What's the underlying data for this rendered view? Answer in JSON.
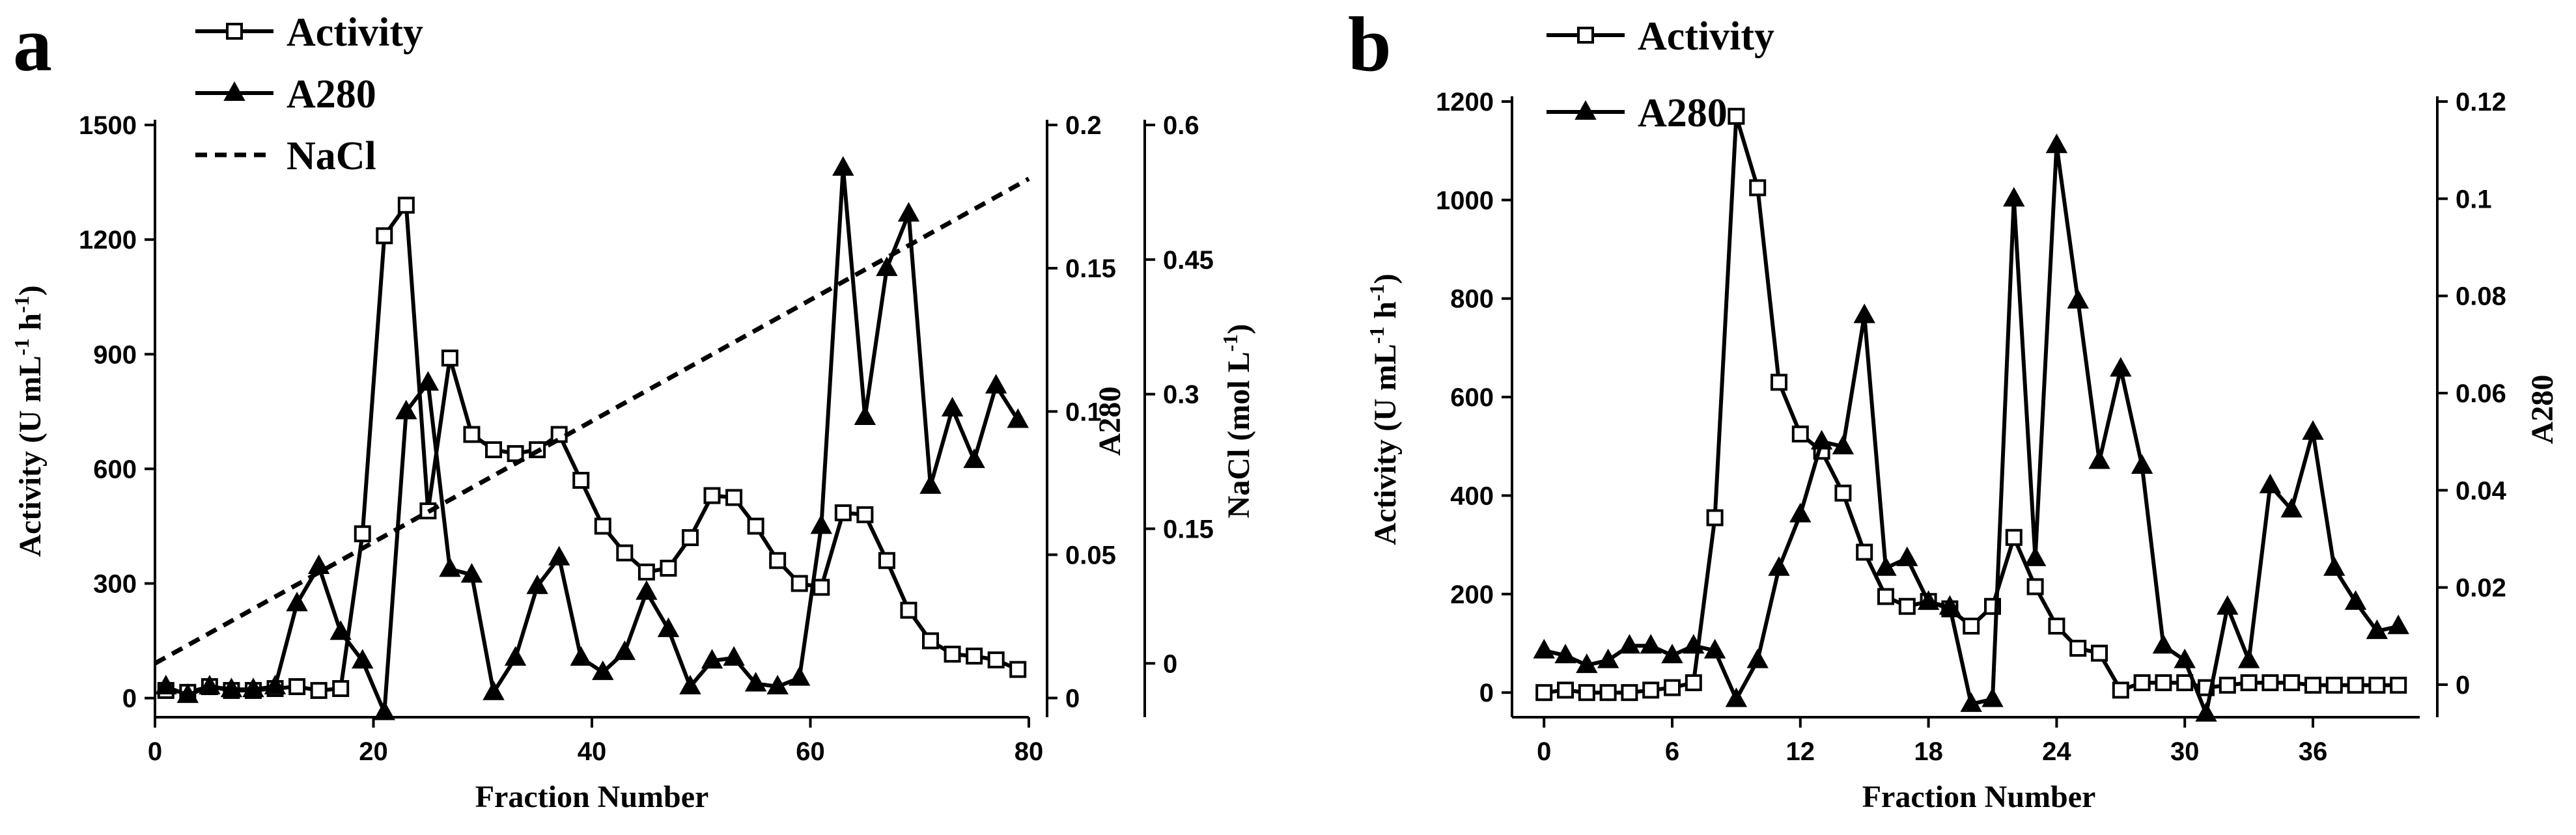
{
  "chart_data": [
    {
      "panel": "a",
      "type": "line",
      "xlabel": "Fraction Number",
      "xlim": [
        0,
        80
      ],
      "xticks": [
        0,
        20,
        40,
        60,
        80
      ],
      "axes": {
        "left": {
          "label": "Activity (U mL⁻¹ h⁻¹)",
          "lim": [
            -50,
            1500
          ],
          "ticks": [
            0,
            300,
            600,
            900,
            1200,
            1500
          ]
        },
        "right1": {
          "label": "A280",
          "lim": [
            -0.0067,
            0.2
          ],
          "ticks": [
            0,
            0.05,
            0.1,
            0.15,
            0.2
          ],
          "tick_labels": [
            "0",
            "0.05",
            "0.1",
            "0.15",
            "0.2"
          ]
        },
        "right2": {
          "label": "NaCl (mol L⁻¹)",
          "lim": [
            -0.06,
            0.6
          ],
          "ticks": [
            0,
            0.15,
            0.3,
            0.45,
            0.6
          ],
          "tick_labels": [
            "0",
            "0.15",
            "0.3",
            "0.45",
            "0.6"
          ]
        }
      },
      "series": [
        {
          "name": "Activity",
          "axis": "left",
          "marker": "square-open",
          "style": "solid",
          "x": [
            1,
            3,
            5,
            7,
            9,
            11,
            13,
            15,
            17,
            19,
            21,
            23,
            25,
            27,
            29,
            31,
            33,
            35,
            37,
            39,
            41,
            43,
            45,
            47,
            49,
            51,
            53,
            55,
            57,
            59,
            61,
            63,
            65,
            67,
            69,
            71,
            73,
            75,
            77,
            79
          ],
          "y": [
            20,
            15,
            30,
            20,
            20,
            25,
            30,
            20,
            25,
            430,
            1210,
            1290,
            490,
            890,
            690,
            650,
            640,
            650,
            690,
            570,
            450,
            380,
            330,
            340,
            420,
            530,
            525,
            450,
            360,
            300,
            290,
            485,
            480,
            360,
            230,
            150,
            115,
            110,
            100,
            75
          ]
        },
        {
          "name": "A280",
          "axis": "right1",
          "marker": "triangle-filled",
          "style": "solid",
          "x": [
            1,
            3,
            5,
            7,
            9,
            11,
            13,
            15,
            17,
            19,
            21,
            23,
            25,
            27,
            29,
            31,
            33,
            35,
            37,
            39,
            41,
            43,
            45,
            47,
            49,
            51,
            53,
            55,
            57,
            59,
            61,
            63,
            65,
            67,
            69,
            71,
            73,
            75,
            77,
            79
          ],
          "y": [
            0.004,
            0.001,
            0.004,
            0.003,
            0.003,
            0.004,
            0.033,
            0.046,
            0.023,
            0.013,
            -0.005,
            0.1,
            0.11,
            0.045,
            0.043,
            0.002,
            0.014,
            0.039,
            0.049,
            0.014,
            0.009,
            0.016,
            0.037,
            0.024,
            0.004,
            0.013,
            0.014,
            0.005,
            0.004,
            0.007,
            0.06,
            0.185,
            0.098,
            0.15,
            0.169,
            0.074,
            0.101,
            0.083,
            0.109,
            0.097
          ]
        },
        {
          "name": "NaCl",
          "axis": "right2",
          "style": "dashed",
          "x": [
            0,
            80
          ],
          "y": [
            0,
            0.54
          ]
        }
      ],
      "legend": {
        "position": "top-left",
        "entries": [
          "Activity",
          "A280",
          "NaCl"
        ]
      }
    },
    {
      "panel": "b",
      "type": "line",
      "xlabel": "Fraction Number",
      "xlim": [
        -1.5,
        41
      ],
      "xticks": [
        0,
        6,
        12,
        18,
        24,
        30,
        36
      ],
      "axes": {
        "left": {
          "label": "Activity (U mL⁻¹ h⁻¹)",
          "lim": [
            -50,
            1200
          ],
          "ticks": [
            0,
            200,
            400,
            600,
            800,
            1000,
            1200
          ]
        },
        "right1": {
          "label": "A280",
          "lim": [
            -0.0067,
            0.12
          ],
          "ticks": [
            0,
            0.02,
            0.04,
            0.06,
            0.08,
            0.1,
            0.12
          ],
          "tick_labels": [
            "0",
            "0.02",
            "0.04",
            "0.06",
            "0.08",
            "0.1",
            "0.12"
          ]
        }
      },
      "series": [
        {
          "name": "Activity",
          "axis": "left",
          "marker": "square-open",
          "style": "solid",
          "x": [
            0,
            1,
            2,
            3,
            4,
            5,
            6,
            7,
            8,
            9,
            10,
            11,
            12,
            13,
            14,
            15,
            16,
            17,
            18,
            19,
            20,
            21,
            22,
            23,
            24,
            25,
            26,
            27,
            28,
            29,
            30,
            31,
            32,
            33,
            34,
            35,
            36,
            37,
            38,
            39,
            40
          ],
          "y": [
            0,
            5,
            0,
            0,
            0,
            5,
            10,
            20,
            355,
            1170,
            1025,
            630,
            525,
            490,
            405,
            285,
            195,
            175,
            185,
            170,
            135,
            175,
            315,
            215,
            135,
            90,
            80,
            5,
            20,
            20,
            20,
            10,
            15,
            20,
            20,
            20,
            15,
            15,
            15,
            15,
            15
          ]
        },
        {
          "name": "A280",
          "axis": "right1",
          "marker": "triangle-filled",
          "style": "solid",
          "x": [
            0,
            1,
            2,
            3,
            4,
            5,
            6,
            7,
            8,
            9,
            10,
            11,
            12,
            13,
            14,
            15,
            16,
            17,
            18,
            19,
            20,
            21,
            22,
            23,
            24,
            25,
            26,
            27,
            28,
            29,
            30,
            31,
            32,
            33,
            34,
            35,
            36,
            37,
            38,
            39,
            40
          ],
          "y": [
            0.007,
            0.006,
            0.004,
            0.005,
            0.008,
            0.008,
            0.006,
            0.008,
            0.007,
            -0.003,
            0.005,
            0.024,
            0.035,
            0.05,
            0.049,
            0.076,
            0.024,
            0.026,
            0.017,
            0.016,
            -0.004,
            -0.003,
            0.1,
            0.026,
            0.111,
            0.079,
            0.046,
            0.065,
            0.045,
            0.008,
            0.005,
            -0.006,
            0.016,
            0.005,
            0.041,
            0.036,
            0.052,
            0.024,
            0.017,
            0.011,
            0.012
          ]
        }
      ],
      "legend": {
        "position": "top-left",
        "entries": [
          "Activity",
          "A280"
        ]
      }
    }
  ]
}
